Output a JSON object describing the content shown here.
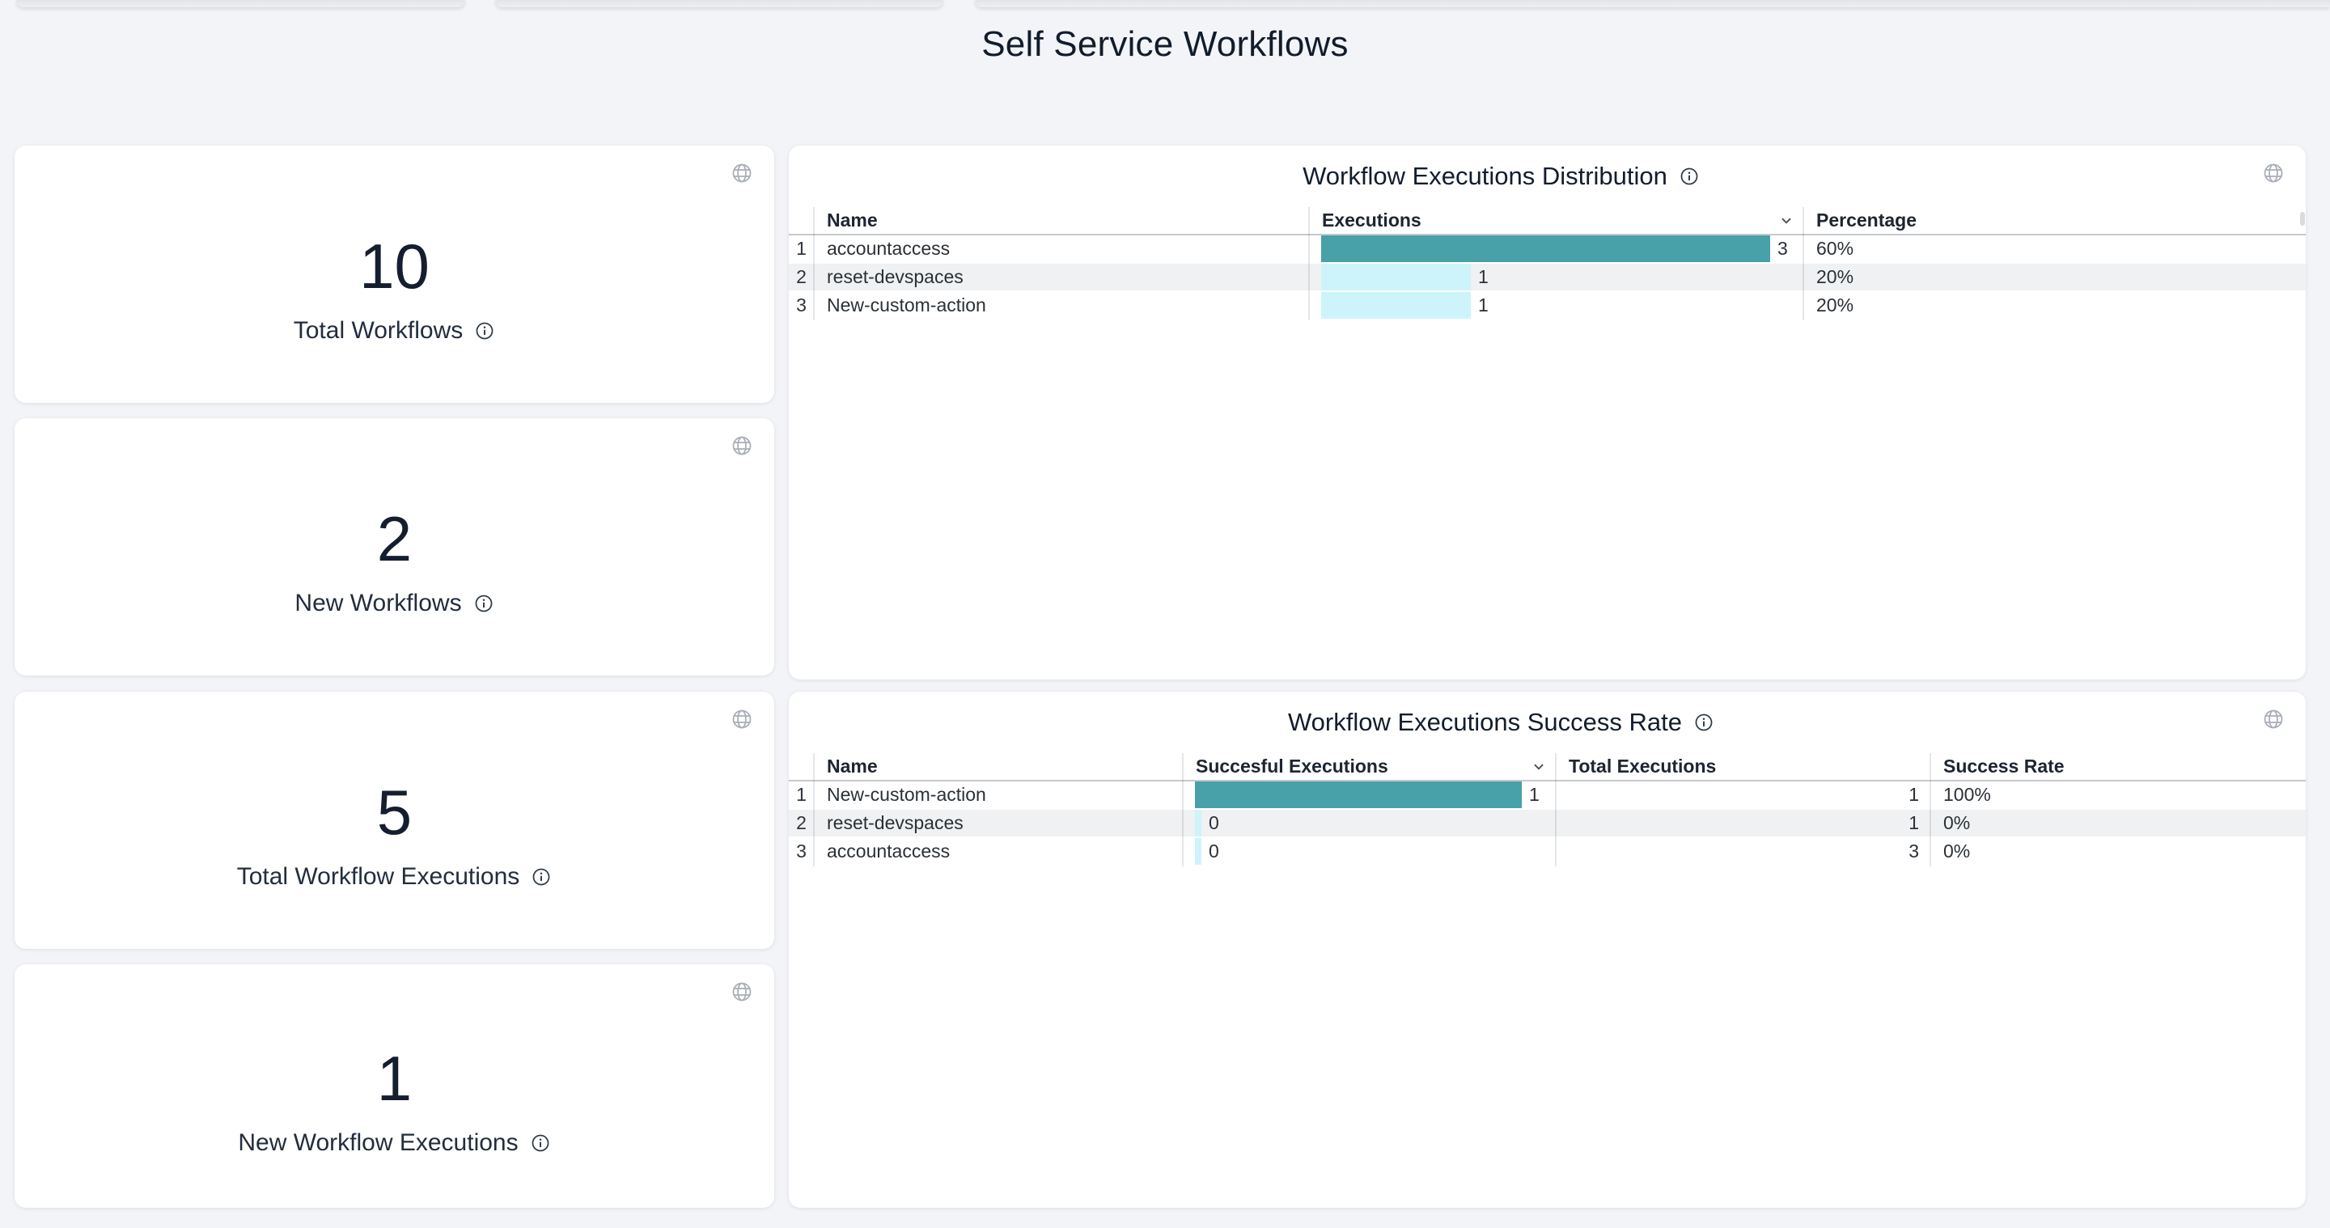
{
  "page_title": "Self Service Workflows",
  "colors": {
    "teal": "#48A0A8",
    "light_cyan": "#CEF4FB",
    "page_bg": "#F3F4F7",
    "title_text": "#111C2C",
    "icon_gray": "#A8ADB7"
  },
  "stat_cards": [
    {
      "value": "10",
      "label": "Total Workflows"
    },
    {
      "value": "2",
      "label": "New Workflows"
    },
    {
      "value": "5",
      "label": "Total Workflow Executions"
    },
    {
      "value": "1",
      "label": "New Workflow Executions"
    }
  ],
  "panels": [
    {
      "title": "Workflow Executions Distribution",
      "columns": {
        "name": "Name",
        "executions": "Executions",
        "percentage": "Percentage"
      },
      "sorted_by": "Executions",
      "rows": [
        {
          "num": "1",
          "name": "accountaccess",
          "executions": 3,
          "percentage": "60%"
        },
        {
          "num": "2",
          "name": "reset-devspaces",
          "executions": 1,
          "percentage": "20%"
        },
        {
          "num": "3",
          "name": "New-custom-action",
          "executions": 1,
          "percentage": "20%"
        }
      ]
    },
    {
      "title": "Workflow Executions Success Rate",
      "columns": {
        "name": "Name",
        "successful": "Succesful Executions",
        "total": "Total Executions",
        "rate": "Success Rate"
      },
      "sorted_by": "Succesful Executions",
      "rows": [
        {
          "num": "1",
          "name": "New-custom-action",
          "successful": 1,
          "total": "1",
          "rate": "100%"
        },
        {
          "num": "2",
          "name": "reset-devspaces",
          "successful": 0,
          "total": "1",
          "rate": "0%"
        },
        {
          "num": "3",
          "name": "accountaccess",
          "successful": 0,
          "total": "3",
          "rate": "0%"
        }
      ]
    }
  ]
}
